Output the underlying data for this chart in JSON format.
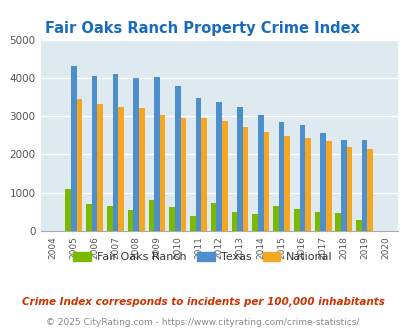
{
  "title": "Fair Oaks Ranch Property Crime Index",
  "years": [
    2004,
    2005,
    2006,
    2007,
    2008,
    2009,
    2010,
    2011,
    2012,
    2013,
    2014,
    2015,
    2016,
    2017,
    2018,
    2019,
    2020
  ],
  "fair_oaks_ranch": [
    0,
    1100,
    700,
    650,
    550,
    800,
    630,
    380,
    720,
    490,
    450,
    660,
    570,
    490,
    480,
    300,
    0
  ],
  "texas": [
    0,
    4300,
    4050,
    4100,
    4000,
    4020,
    3800,
    3480,
    3370,
    3240,
    3040,
    2840,
    2760,
    2570,
    2390,
    2390,
    0
  ],
  "national": [
    0,
    3450,
    3330,
    3230,
    3210,
    3040,
    2960,
    2940,
    2870,
    2720,
    2590,
    2470,
    2440,
    2350,
    2190,
    2130,
    0
  ],
  "color_fair_oaks": "#7db800",
  "color_texas": "#4d8fcc",
  "color_national": "#f5a623",
  "bg_color": "#deeaf0",
  "title_color": "#1a6bbf",
  "ylim": [
    0,
    5000
  ],
  "yticks": [
    0,
    1000,
    2000,
    3000,
    4000,
    5000
  ],
  "footnote1": "Crime Index corresponds to incidents per 100,000 inhabitants",
  "footnote2": "© 2025 CityRating.com - https://www.cityrating.com/crime-statistics/",
  "footnote1_color": "#cc3300",
  "footnote2_color": "#888888",
  "legend_labels": [
    "Fair Oaks Ranch",
    "Texas",
    "National"
  ]
}
